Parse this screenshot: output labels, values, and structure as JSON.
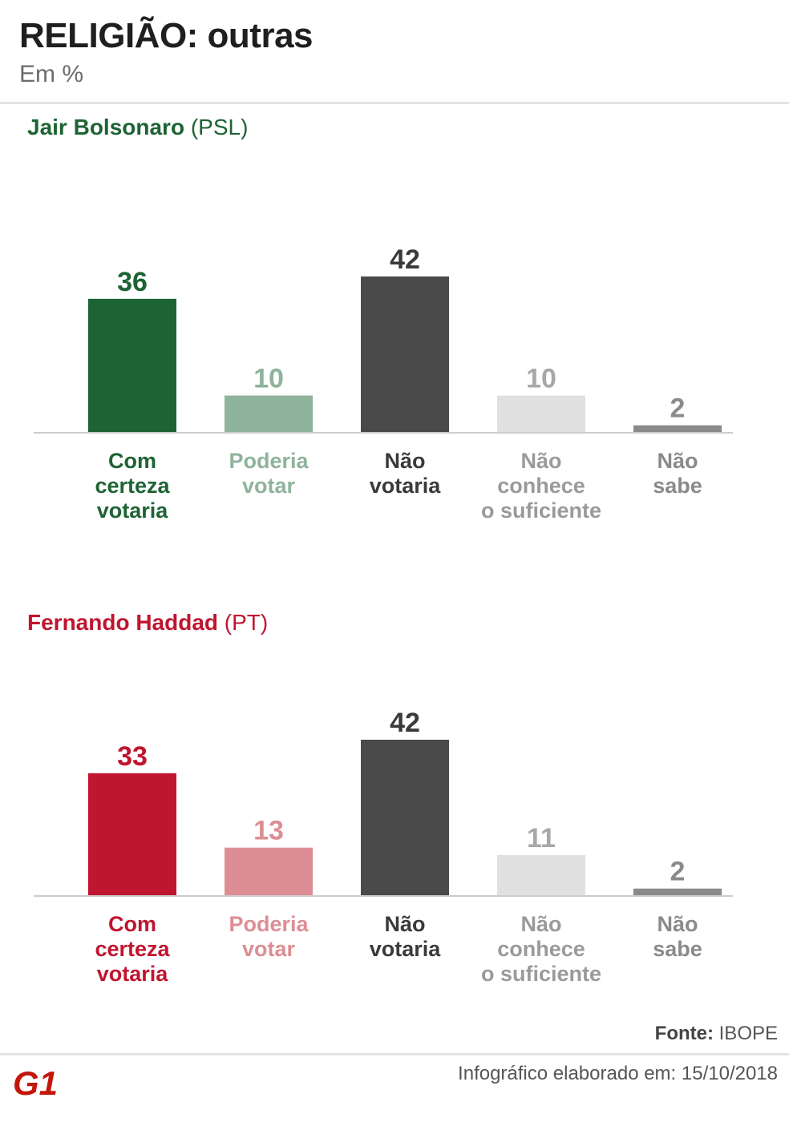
{
  "header": {
    "title": "RELIGIÃO: outras",
    "subtitle": "Em %"
  },
  "colors": {
    "bolsonaro_main": "#1e6334",
    "bolsonaro_light": "#8fb39b",
    "haddad_main": "#c0152f",
    "haddad_light": "#dd8e94",
    "nao_votaria": "#4a4a4a",
    "nao_conhece": "#e0e0e0",
    "nao_sabe": "#8a8a8a",
    "logo": "#c4170c"
  },
  "chart_data": [
    {
      "type": "bar",
      "title": "Jair Bolsonaro",
      "subtitle": "(PSL)",
      "categories": [
        "Com certeza votaria",
        "Poderia votar",
        "Não votaria",
        "Não conhece o suficiente",
        "Não sabe"
      ],
      "category_lines": [
        [
          "Com",
          "certeza",
          "votaria"
        ],
        [
          "Poderia",
          "votar"
        ],
        [
          "Não",
          "votaria"
        ],
        [
          "Não",
          "conhece",
          "o suficiente"
        ],
        [
          "Não",
          "sabe"
        ]
      ],
      "values": [
        36,
        10,
        42,
        10,
        2
      ],
      "ylim": [
        0,
        42
      ]
    },
    {
      "type": "bar",
      "title": "Fernando Haddad",
      "subtitle": "(PT)",
      "categories": [
        "Com certeza votaria",
        "Poderia votar",
        "Não votaria",
        "Não conhece o suficiente",
        "Não sabe"
      ],
      "category_lines": [
        [
          "Com",
          "certeza",
          "votaria"
        ],
        [
          "Poderia",
          "votar"
        ],
        [
          "Não",
          "votaria"
        ],
        [
          "Não",
          "conhece",
          "o suficiente"
        ],
        [
          "Não",
          "sabe"
        ]
      ],
      "values": [
        33,
        13,
        42,
        11,
        2
      ],
      "ylim": [
        0,
        42
      ]
    }
  ],
  "footer": {
    "source_label": "Fonte:",
    "source_value": "IBOPE",
    "date_text": "Infográfico elaborado em: 15/10/2018"
  },
  "logo": {
    "text": "G1"
  }
}
